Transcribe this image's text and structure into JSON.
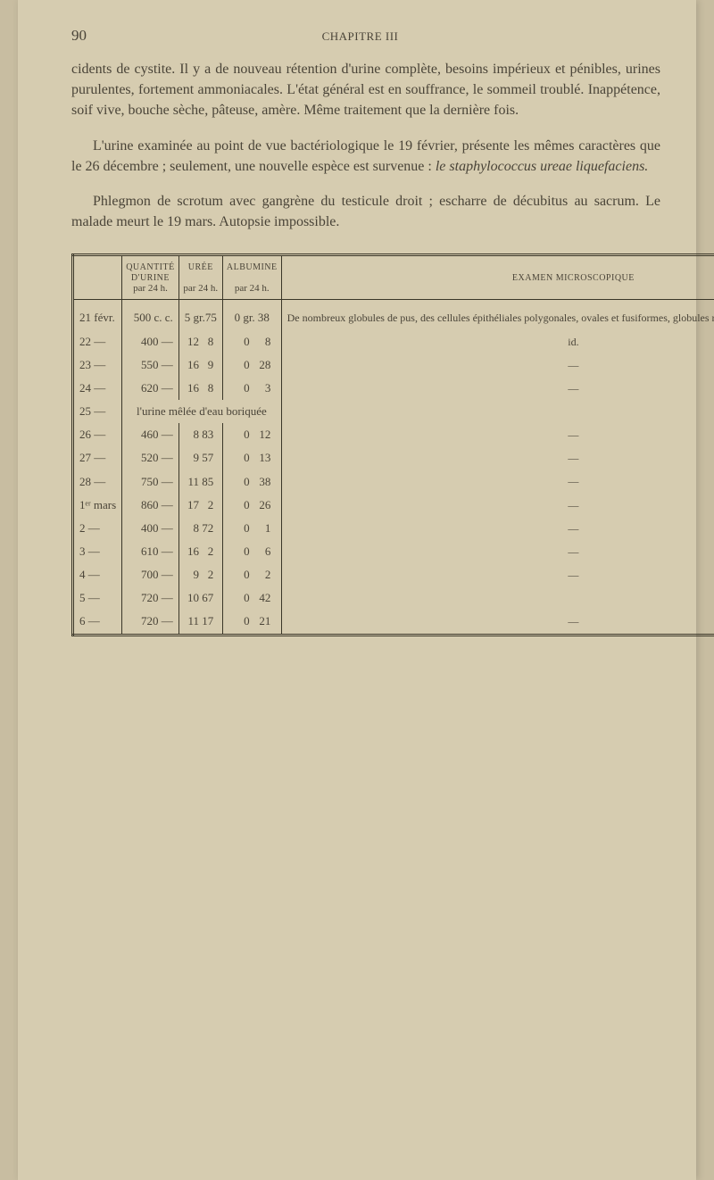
{
  "header": {
    "page_number": "90",
    "chapter": "CHAPITRE III"
  },
  "paragraphs": {
    "p1": "cidents de cystite. Il y a de nouveau rétention d'urine complète, besoins impérieux et pénibles, urines purulentes, fortement ammoniacales. L'état général est en souffrance, le sommeil troublé. Inappétence, soif vive, bouche sèche, pâteuse, amère. Même traitement que la dernière fois.",
    "p2a": "L'urine examinée au point de vue bactériologique le 19 février, présente les mêmes caractères que le 26 décembre ; seulement, une nouvelle espèce est survenue : ",
    "p2b_italic": "le staphylococcus ureae liquefaciens.",
    "p3": "Phlegmon de scrotum avec gangrène du testicule droit ; escharre de décubitus au sacrum. Le malade meurt le 19 mars. Autopsie impossible."
  },
  "table": {
    "columns": {
      "date": "",
      "qty_label1": "QUANTITÉ",
      "qty_label2": "D'URINE",
      "qty_label3": "par 24 h.",
      "uree_label1": "URÉE",
      "uree_label2": "par 24 h.",
      "alb_label1": "ALBUMINE",
      "alb_label2": "par 24 h.",
      "exam_label": "EXAMEN MICROSCOPIQUE"
    },
    "rows": [
      {
        "date": "21 févr.",
        "qty": "500 c. c.",
        "uree": "5 gr.75",
        "alb": "0 gr. 38",
        "exam": "De nombreux globules de pus, des cellules épithéliales polygonales, ovales et fusiformes, globules rouges. Cristaux. Pas de cylindres."
      },
      {
        "date": "22   —",
        "qty": "400 —",
        "uree_l": "12",
        "uree_r": "8",
        "alb_l": "0",
        "alb_r": "8",
        "exam": "id."
      },
      {
        "date": "23   —",
        "qty": "550 —",
        "uree_l": "16",
        "uree_r": "9",
        "alb_l": "0",
        "alb_r": "28",
        "exam": "—"
      },
      {
        "date": "24   —",
        "qty": "620 —",
        "uree_l": "16",
        "uree_r": "8",
        "alb_l": "0",
        "alb_r": "3",
        "exam": "—"
      },
      {
        "merged": "l'urine mêlée d'eau boriquée",
        "date": "25   —"
      },
      {
        "date": "26   —",
        "qty": "460 —",
        "uree_l": "8",
        "uree_r": "83",
        "alb_l": "0",
        "alb_r": "12",
        "exam": "—"
      },
      {
        "date": "27   —",
        "qty": "520 —",
        "uree_l": "9",
        "uree_r": "57",
        "alb_l": "0",
        "alb_r": "13",
        "exam": "—"
      },
      {
        "date": "28   —",
        "qty": "750 —",
        "uree_l": "11",
        "uree_r": "85",
        "alb_l": "0",
        "alb_r": "38",
        "exam": "—"
      },
      {
        "date": "1ᵉʳ mars",
        "qty": "860 —",
        "uree_l": "17",
        "uree_r": "2",
        "alb_l": "0",
        "alb_r": "26",
        "exam": "—"
      },
      {
        "date": "2    —",
        "qty": "400 —",
        "uree_l": "8",
        "uree_r": "72",
        "alb_l": "0",
        "alb_r": "1",
        "exam": "—"
      },
      {
        "date": "3    —",
        "qty": "610 —",
        "uree_l": "16",
        "uree_r": "2",
        "alb_l": "0",
        "alb_r": "6",
        "exam": "—"
      },
      {
        "date": "4    —",
        "qty": "700 —",
        "uree_l": "9",
        "uree_r": "2",
        "alb_l": "0",
        "alb_r": "2",
        "exam": "—"
      },
      {
        "date": "5    —",
        "qty": "720 —",
        "uree_l": "10",
        "uree_r": "67",
        "alb_l": "0",
        "alb_r": "42",
        "exam": ""
      },
      {
        "date": "6    —",
        "qty": "720 —",
        "uree_l": "11",
        "uree_r": "17",
        "alb_l": "0",
        "alb_r": "21",
        "exam": "—"
      }
    ],
    "styling": {
      "border_color": "#3a3628",
      "text_color": "#4a4438",
      "background_color": "#d6ccb0",
      "header_fontsize": 11,
      "body_fontsize": 13
    }
  }
}
